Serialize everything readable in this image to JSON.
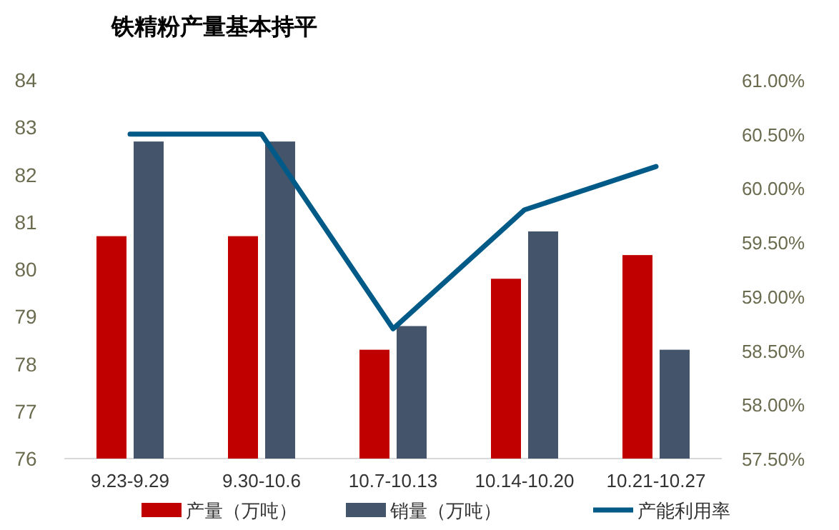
{
  "chart_data": {
    "type": "bar",
    "title": "铁精粉产量基本持平",
    "categories": [
      "9.23-9.29",
      "9.30-10.6",
      "10.7-10.13",
      "10.14-10.20",
      "10.21-10.27"
    ],
    "series": [
      {
        "name": "产量（万吨）",
        "color": "#c00000",
        "values": [
          80.7,
          80.7,
          78.3,
          79.8,
          80.3
        ]
      },
      {
        "name": "销量（万吨）",
        "color": "#44546a",
        "values": [
          82.7,
          82.7,
          78.8,
          80.8,
          78.3
        ]
      },
      {
        "name": "产能利用率",
        "color": "#005a87",
        "type": "line",
        "axis": "y2",
        "values": [
          60.5,
          60.5,
          58.7,
          59.8,
          60.2
        ]
      }
    ],
    "ylim": [
      76,
      84
    ],
    "yticks": [
      76,
      77,
      78,
      79,
      80,
      81,
      82,
      83,
      84
    ],
    "y2lim": [
      57.5,
      61
    ],
    "y2ticks": [
      {
        "value": 57.5,
        "label": "57.50%"
      },
      {
        "value": 58,
        "label": "58.00%"
      },
      {
        "value": 58.5,
        "label": "58.50%"
      },
      {
        "value": 59,
        "label": "59.00%"
      },
      {
        "value": 59.5,
        "label": "59.50%"
      },
      {
        "value": 60,
        "label": "60.00%"
      },
      {
        "value": 60.5,
        "label": "60.50%"
      },
      {
        "value": 61,
        "label": "61.00%"
      }
    ],
    "grid": false,
    "legend": "bottom",
    "marker": "none",
    "line_style": "solid"
  }
}
